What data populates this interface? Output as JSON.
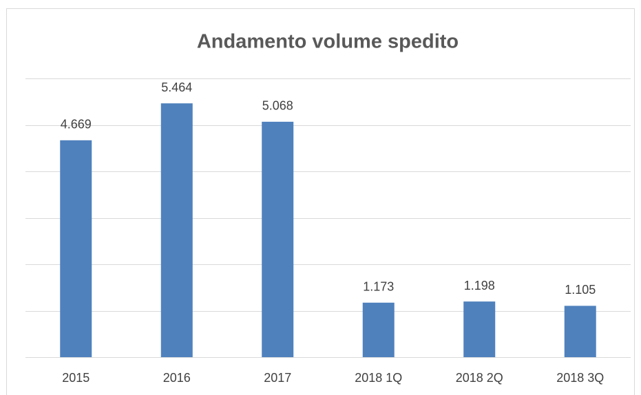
{
  "chart_data": {
    "type": "bar",
    "title": "Andamento volume spedito",
    "categories": [
      "2015",
      "2016",
      "2017",
      "2018 1Q",
      "2018 2Q",
      "2018 3Q"
    ],
    "values": [
      4669,
      5464,
      5068,
      1173,
      1198,
      1105
    ],
    "value_labels": [
      "4.669",
      "5.464",
      "5.068",
      "1.173",
      "1.198",
      "1.105"
    ],
    "color": "#4f81bd",
    "ylim": [
      0,
      6000
    ],
    "yticks": [
      0,
      1000,
      2000,
      3000,
      4000,
      5000,
      6000
    ],
    "grid": true
  }
}
